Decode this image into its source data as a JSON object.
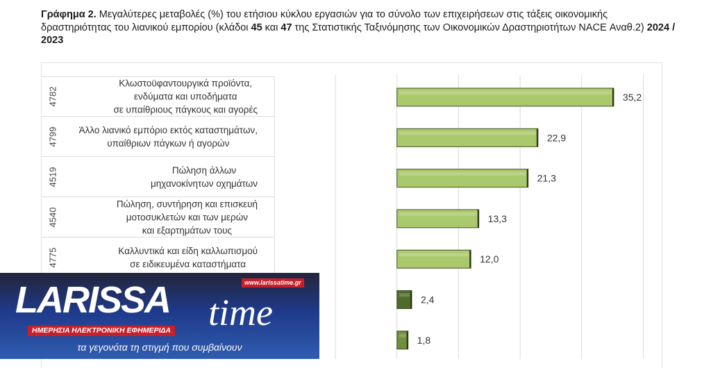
{
  "title": {
    "bold_prefix": "Γράφημα 2.",
    "text": " Μεγαλύτερες μεταβολές (%) του ετήσιου κύκλου εργασιών για το σύνολο των επιχειρήσεων στις τάξεις οικονομικής δραστηριότητας του λιανικού εμπορίου (κλάδοι ",
    "k1": "45",
    "and": " και ",
    "k2": "47",
    "text2": " της Στατιστικής Ταξινόμησης των Οικονομικών Δραστηριοτήτων NACE Αναθ.2) ",
    "years": "2024 / 2023"
  },
  "chart_data": {
    "type": "bar",
    "orientation": "horizontal",
    "title": "Γράφημα 2. Μεγαλύτερες μεταβολές (%) του ετήσιου κύκλου εργασιών 2024 / 2023",
    "xlim": [
      -10,
      40
    ],
    "grid": true,
    "categories": [
      {
        "code": "4782",
        "label": "Κλωστοϋφαντουργικά προϊόντα,\nενδύματα και υποδήματα\nσε υπαίθριους πάγκους και αγορές"
      },
      {
        "code": "4799",
        "label": "Άλλο λιανικό εμπόριο εκτός καταστημάτων,\nυπαίθριων πάγκων ή αγορών"
      },
      {
        "code": "4519",
        "label": "Πώληση άλλων\nμηχανοκίνητων οχημάτων"
      },
      {
        "code": "4540",
        "label": "Πώληση, συντήρηση και επισκευή\nμοτοσυκλετών και των μερών\nκαι εξαρτημάτων τους"
      },
      {
        "code": "4775",
        "label": "Καλλυντικά και είδη καλλωπισμού\nσε ειδικευμένα καταστήματα"
      },
      {
        "code": "",
        "label": ""
      },
      {
        "code": "",
        "label": ""
      }
    ],
    "values": [
      35.2,
      22.9,
      21.3,
      13.3,
      12.0,
      2.4,
      1.8
    ],
    "value_labels": [
      "35,2",
      "22,9",
      "21,3",
      "13,3",
      "12,0",
      "2,4",
      "1,8"
    ],
    "colors": [
      "#a9c96c",
      "#a9c96c",
      "#a9c96c",
      "#a9c96c",
      "#a9c96c",
      "#4f6a2a",
      "#6f8f3c"
    ]
  },
  "logo": {
    "name_big": "LARISSA",
    "name_time": "time",
    "url": "www.larissatime.gr",
    "subtitle": "ΗΜΕΡΗΣΙΑ ΗΛΕΚΤΡΟΝΙΚΗ ΕΦΗΜΕΡΙΔΑ",
    "tagline": "τα γεγονότα τη στιγμή που συμβαίνουν"
  }
}
